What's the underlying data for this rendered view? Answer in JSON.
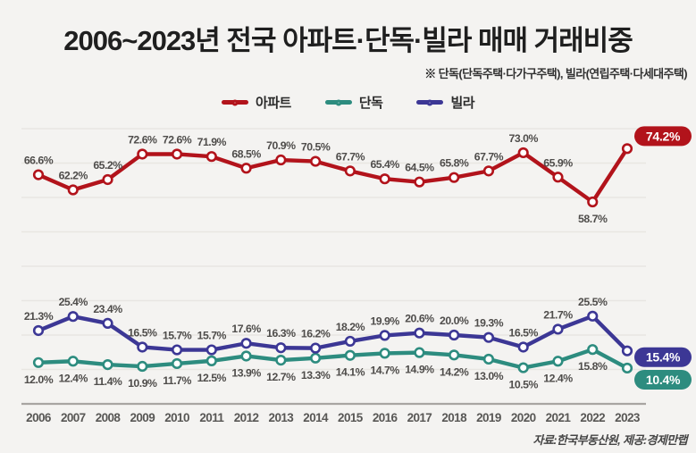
{
  "title": "2006~2023년 전국 아파트·단독·빌라 매매 거래비중",
  "subtitle": "※ 단독(단독주택·다가구주택), 빌라(연립주택·다세대주택)",
  "footer": "자료:한국부동산원, 제공:경제만랩",
  "colors": {
    "apartment": "#b2131b",
    "detached": "#2d8c7f",
    "villa": "#3c3795",
    "value_label": "#4f4d4b",
    "year_label": "#585755",
    "grid": "#e8e6e2",
    "axis": "#a8a5a2",
    "background": "#f4f3f1",
    "badge_text": "#ffffff"
  },
  "legend": [
    {
      "id": "apartment",
      "label": "아파트"
    },
    {
      "id": "detached",
      "label": "단독"
    },
    {
      "id": "villa",
      "label": "빌라"
    }
  ],
  "chart_data": {
    "type": "line",
    "categories": [
      "2006",
      "2007",
      "2008",
      "2009",
      "2010",
      "2011",
      "2012",
      "2013",
      "2014",
      "2015",
      "2016",
      "2017",
      "2018",
      "2019",
      "2020",
      "2021",
      "2022",
      "2023"
    ],
    "series": [
      {
        "id": "apartment",
        "name": "아파트",
        "color": "#b2131b",
        "values": [
          66.6,
          62.2,
          65.2,
          72.6,
          72.6,
          71.9,
          68.5,
          70.9,
          70.5,
          67.7,
          65.4,
          64.5,
          65.8,
          67.7,
          73.0,
          65.9,
          58.7,
          74.2
        ],
        "label_position": "above",
        "label_overrides": {
          "16": "below"
        },
        "last_value_badge": true
      },
      {
        "id": "detached",
        "name": "단독",
        "color": "#2d8c7f",
        "values": [
          12.0,
          12.4,
          11.4,
          10.9,
          11.7,
          12.5,
          13.9,
          12.7,
          13.3,
          14.1,
          14.7,
          14.9,
          14.2,
          13.0,
          10.5,
          12.4,
          15.8,
          10.4
        ],
        "label_position": "below",
        "label_overrides": {},
        "last_value_badge": true
      },
      {
        "id": "villa",
        "name": "빌라",
        "color": "#3c3795",
        "values": [
          21.3,
          25.4,
          23.4,
          16.5,
          15.7,
          15.7,
          17.6,
          16.3,
          16.2,
          18.2,
          19.9,
          20.6,
          20.0,
          19.3,
          16.5,
          21.7,
          25.5,
          15.4
        ],
        "label_position": "above",
        "label_overrides": {},
        "last_value_badge": true
      }
    ],
    "ylim": [
      0,
      80
    ],
    "grid": true,
    "grid_step": 10,
    "legend_position": "top",
    "xlabel": "",
    "ylabel": ""
  }
}
